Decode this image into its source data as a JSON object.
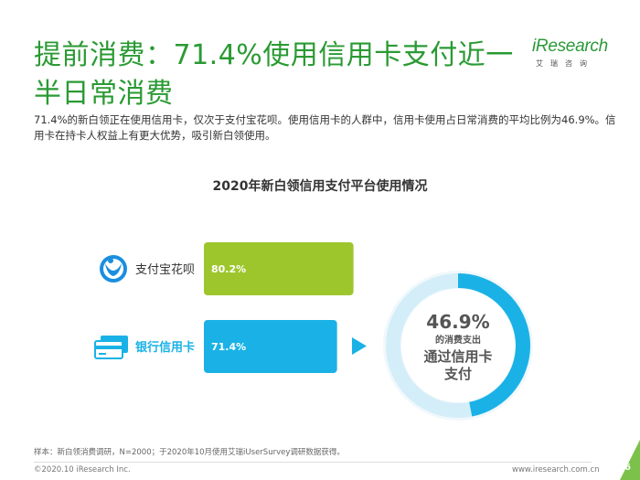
{
  "title": "提前消费：71.4%使用信用卡支付近一半日常消费",
  "logo": {
    "main": "iResearch",
    "sub": "艾瑞咨询"
  },
  "description": "71.4%的新白领正在使用信用卡，仅次于支付宝花呗。使用信用卡的人群中，信用卡使用占日常消费的平均比例为46.9%。信用卡在持卡人权益上有更大优势，吸引新白领使用。",
  "colors": {
    "title": "#2a9a33",
    "bar_green": "#9dc62d",
    "bar_blue": "#1ab2e6",
    "ring": "#1ab2e6",
    "ring_bg": "#d4eef9"
  },
  "chart_data": {
    "type": "bar",
    "title": "2020年新白领信用支付平台使用情况",
    "orientation": "horizontal",
    "xlim": [
      0,
      100
    ],
    "categories": [
      "支付宝花呗",
      "银行信用卡"
    ],
    "values": [
      80.2,
      71.4
    ],
    "value_labels": [
      "80.2%",
      "71.4%"
    ],
    "icons": [
      "huabei-logo-icon",
      "credit-card-icon"
    ],
    "donut": {
      "value": 46.9,
      "value_label": "46.9%",
      "line1": "的消费支出",
      "line2": "通过信用卡",
      "line3": "支付"
    }
  },
  "footnote": "样本：新白领消费调研，N=2000；于2020年10月使用艾瑞iUserSurvey调研数据获得。",
  "copyright": "©2020.10 iResearch Inc.",
  "website": "www.iresearch.com.cn",
  "page_number": "6"
}
